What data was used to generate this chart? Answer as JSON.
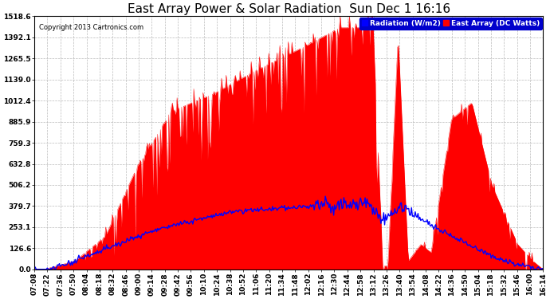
{
  "title": "East Array Power & Solar Radiation  Sun Dec 1 16:16",
  "copyright": "Copyright 2013 Cartronics.com",
  "legend_radiation": "Radiation (W/m2)",
  "legend_east_array": "East Array (DC Watts)",
  "y_max": 1518.6,
  "y_min": 0.0,
  "y_ticks": [
    0.0,
    126.6,
    253.1,
    379.7,
    506.2,
    632.8,
    759.3,
    885.9,
    1012.4,
    1139.0,
    1265.5,
    1392.1,
    1518.6
  ],
  "background_color": "#ffffff",
  "plot_bg_color": "#ffffff",
  "grid_color": "#bbbbbb",
  "radiation_color": "#0000ff",
  "east_array_color": "#ff0000",
  "east_array_fill": "#ff0000",
  "title_fontsize": 11,
  "tick_fontsize": 6.5,
  "x_labels": [
    "07:08",
    "07:22",
    "07:36",
    "07:50",
    "08:04",
    "08:18",
    "08:32",
    "08:46",
    "09:00",
    "09:14",
    "09:28",
    "09:42",
    "09:56",
    "10:10",
    "10:24",
    "10:38",
    "10:52",
    "11:06",
    "11:20",
    "11:34",
    "11:48",
    "12:02",
    "12:16",
    "12:30",
    "12:44",
    "12:58",
    "13:12",
    "13:26",
    "13:40",
    "13:54",
    "14:08",
    "14:22",
    "14:36",
    "14:50",
    "15:04",
    "15:18",
    "15:32",
    "15:46",
    "16:00",
    "16:14"
  ],
  "n_points": 550
}
